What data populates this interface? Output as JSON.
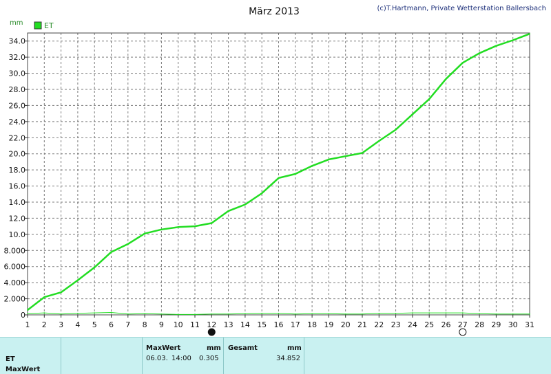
{
  "title": "März 2013",
  "credit": "(c)T.Hartmann, Private Wetterstation Ballersbach",
  "y_unit": "mm",
  "legend": {
    "label": "ET",
    "color": "#22dd22"
  },
  "chart_data": {
    "type": "line",
    "title": "März 2013",
    "ylabel": "mm",
    "xlim": [
      1,
      31
    ],
    "ylim": [
      0,
      35
    ],
    "grid": true,
    "x_ticks": [
      "1",
      "2",
      "3",
      "4",
      "5",
      "6",
      "7",
      "8",
      "9",
      "10",
      "11",
      "12",
      "13",
      "14",
      "15",
      "16",
      "17",
      "18",
      "19",
      "20",
      "21",
      "22",
      "23",
      "24",
      "25",
      "26",
      "27",
      "28",
      "29",
      "30",
      "31"
    ],
    "y_ticks": [
      "0",
      "2.000",
      "4.000",
      "6.000",
      "8.000",
      "10.0",
      "12.0",
      "14.0",
      "16.0",
      "18.0",
      "20.0",
      "22.0",
      "24.0",
      "26.0",
      "28.0",
      "30.0",
      "32.0",
      "34.0"
    ],
    "series": [
      {
        "name": "ET",
        "color": "#22dd22",
        "x": [
          1,
          2,
          3,
          4,
          5,
          6,
          7,
          8,
          9,
          10,
          11,
          12,
          13,
          14,
          15,
          16,
          17,
          18,
          19,
          20,
          21,
          22,
          23,
          24,
          25,
          26,
          27,
          28,
          29,
          30,
          31
        ],
        "values": [
          0.6,
          2.2,
          2.8,
          4.3,
          5.9,
          7.8,
          8.8,
          10.1,
          10.6,
          10.9,
          11.0,
          11.4,
          12.9,
          13.7,
          15.1,
          17.0,
          17.5,
          18.5,
          19.3,
          19.7,
          20.1,
          21.6,
          23.0,
          24.9,
          26.8,
          29.3,
          31.3,
          32.5,
          33.4,
          34.1,
          34.9
        ]
      },
      {
        "name": "",
        "color": "#22dd22",
        "x": [
          1,
          2,
          3,
          4,
          5,
          6,
          7,
          8,
          9,
          10,
          11,
          12,
          13,
          14,
          15,
          16,
          17,
          18,
          19,
          20,
          21,
          22,
          23,
          24,
          25,
          26,
          27,
          28,
          29,
          30,
          31
        ],
        "values": [
          0.15,
          0.25,
          0.1,
          0.2,
          0.25,
          0.3,
          0.1,
          0.15,
          0.1,
          0.05,
          0.05,
          0.1,
          0.1,
          0.15,
          0.2,
          0.2,
          0.1,
          0.15,
          0.15,
          0.1,
          0.1,
          0.2,
          0.2,
          0.25,
          0.25,
          0.25,
          0.25,
          0.15,
          0.1,
          0.1,
          0.1
        ]
      }
    ],
    "moon_markers": [
      {
        "x": 12,
        "symbol": "●"
      },
      {
        "x": 27,
        "symbol": "○"
      }
    ]
  },
  "table": {
    "row_labels": [
      "ET",
      "MaxWert"
    ],
    "maxwert_header": "MaxWert",
    "maxwert_unit": "mm",
    "maxwert_date": "06.03.",
    "maxwert_time": "14:00",
    "maxwert_value": "0.305",
    "gesamt_header": "Gesamt",
    "gesamt_unit": "mm",
    "gesamt_value": "34.852"
  }
}
